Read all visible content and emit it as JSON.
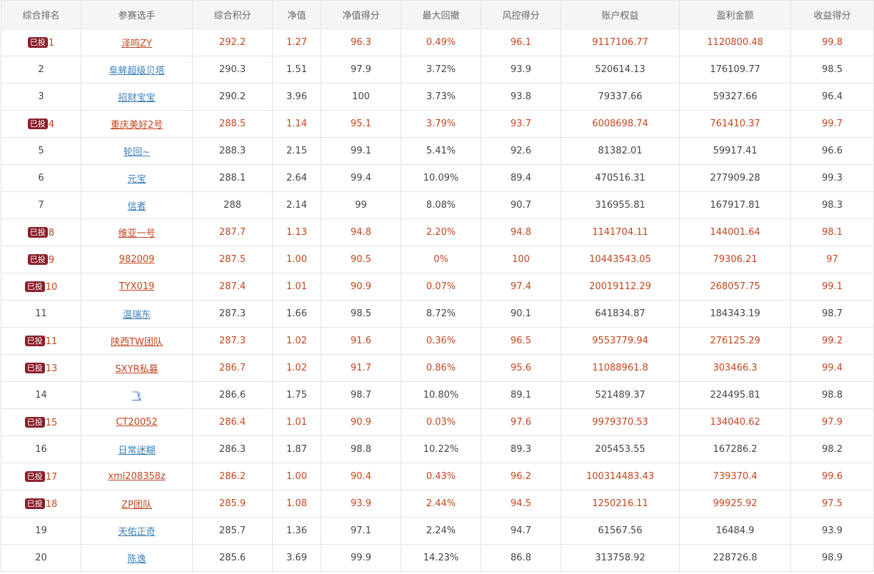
{
  "table": {
    "headers": [
      "综合排名",
      "参赛选手",
      "综合积分",
      "净值",
      "净值得分",
      "最大回撤",
      "风控得分",
      "账户权益",
      "盈利金额",
      "收益得分"
    ],
    "badge_label": "已投",
    "rows": [
      {
        "rank": "1",
        "invested": true,
        "name": "泽鸣ZY",
        "score": "292.2",
        "nav": "1.27",
        "nav_score": "96.3",
        "max_drawdown": "0.49%",
        "risk_score": "96.1",
        "equity": "9117106.77",
        "profit": "1120800.48",
        "return_score": "99.8"
      },
      {
        "rank": "2",
        "invested": false,
        "name": "阜蛑超级贝塔",
        "score": "290.3",
        "nav": "1.51",
        "nav_score": "97.9",
        "max_drawdown": "3.72%",
        "risk_score": "93.9",
        "equity": "520614.13",
        "profit": "176109.77",
        "return_score": "98.5"
      },
      {
        "rank": "3",
        "invested": false,
        "name": "招财宝宝",
        "score": "290.2",
        "nav": "3.96",
        "nav_score": "100",
        "max_drawdown": "3.73%",
        "risk_score": "93.8",
        "equity": "79337.66",
        "profit": "59327.66",
        "return_score": "96.4"
      },
      {
        "rank": "4",
        "invested": true,
        "name": "重庆美好2号",
        "score": "288.5",
        "nav": "1.14",
        "nav_score": "95.1",
        "max_drawdown": "3.79%",
        "risk_score": "93.7",
        "equity": "6008698.74",
        "profit": "761410.37",
        "return_score": "99.7"
      },
      {
        "rank": "5",
        "invested": false,
        "name": "轮回~",
        "score": "288.3",
        "nav": "2.15",
        "nav_score": "99.1",
        "max_drawdown": "5.41%",
        "risk_score": "92.6",
        "equity": "81382.01",
        "profit": "59917.41",
        "return_score": "96.6"
      },
      {
        "rank": "6",
        "invested": false,
        "name": "元宝",
        "score": "288.1",
        "nav": "2.64",
        "nav_score": "99.4",
        "max_drawdown": "10.09%",
        "risk_score": "89.4",
        "equity": "470516.31",
        "profit": "277909.28",
        "return_score": "99.3"
      },
      {
        "rank": "7",
        "invested": false,
        "name": "信者",
        "score": "288",
        "nav": "2.14",
        "nav_score": "99",
        "max_drawdown": "8.08%",
        "risk_score": "90.7",
        "equity": "316955.81",
        "profit": "167917.81",
        "return_score": "98.3"
      },
      {
        "rank": "8",
        "invested": true,
        "name": "维亚一号",
        "score": "287.7",
        "nav": "1.13",
        "nav_score": "94.8",
        "max_drawdown": "2.20%",
        "risk_score": "94.8",
        "equity": "1141704.11",
        "profit": "144001.64",
        "return_score": "98.1"
      },
      {
        "rank": "9",
        "invested": true,
        "name": "982009",
        "score": "287.5",
        "nav": "1.00",
        "nav_score": "90.5",
        "max_drawdown": "0%",
        "risk_score": "100",
        "equity": "10443543.05",
        "profit": "79306.21",
        "return_score": "97"
      },
      {
        "rank": "10",
        "invested": true,
        "name": "TYX019",
        "score": "287.4",
        "nav": "1.01",
        "nav_score": "90.9",
        "max_drawdown": "0.07%",
        "risk_score": "97.4",
        "equity": "20019112.29",
        "profit": "268057.75",
        "return_score": "99.1"
      },
      {
        "rank": "11",
        "invested": false,
        "name": "温瑞东",
        "score": "287.3",
        "nav": "1.66",
        "nav_score": "98.5",
        "max_drawdown": "8.72%",
        "risk_score": "90.1",
        "equity": "641834.87",
        "profit": "184343.19",
        "return_score": "98.7"
      },
      {
        "rank": "11",
        "invested": true,
        "name": "陕西TW团队",
        "score": "287.3",
        "nav": "1.02",
        "nav_score": "91.6",
        "max_drawdown": "0.36%",
        "risk_score": "96.5",
        "equity": "9553779.94",
        "profit": "276125.29",
        "return_score": "99.2"
      },
      {
        "rank": "13",
        "invested": true,
        "name": "SXYR私募",
        "score": "286.7",
        "nav": "1.02",
        "nav_score": "91.7",
        "max_drawdown": "0.86%",
        "risk_score": "95.6",
        "equity": "11088961.8",
        "profit": "303466.3",
        "return_score": "99.4"
      },
      {
        "rank": "14",
        "invested": false,
        "name": "飞",
        "score": "286.6",
        "nav": "1.75",
        "nav_score": "98.7",
        "max_drawdown": "10.80%",
        "risk_score": "89.1",
        "equity": "521489.37",
        "profit": "224495.81",
        "return_score": "98.8"
      },
      {
        "rank": "15",
        "invested": true,
        "name": "CT20052",
        "score": "286.4",
        "nav": "1.01",
        "nav_score": "90.9",
        "max_drawdown": "0.03%",
        "risk_score": "97.6",
        "equity": "9979370.53",
        "profit": "134040.62",
        "return_score": "97.9"
      },
      {
        "rank": "16",
        "invested": false,
        "name": "日常迷糊",
        "score": "286.3",
        "nav": "1.87",
        "nav_score": "98.8",
        "max_drawdown": "10.22%",
        "risk_score": "89.3",
        "equity": "205453.55",
        "profit": "167286.2",
        "return_score": "98.2"
      },
      {
        "rank": "17",
        "invested": true,
        "name": "xml208358z",
        "score": "286.2",
        "nav": "1.00",
        "nav_score": "90.4",
        "max_drawdown": "0.43%",
        "risk_score": "96.2",
        "equity": "100314483.43",
        "profit": "739370.4",
        "return_score": "99.6"
      },
      {
        "rank": "18",
        "invested": true,
        "name": "ZP团队",
        "score": "285.9",
        "nav": "1.08",
        "nav_score": "93.9",
        "max_drawdown": "2.44%",
        "risk_score": "94.5",
        "equity": "1250216.11",
        "profit": "99925.92",
        "return_score": "97.5"
      },
      {
        "rank": "19",
        "invested": false,
        "name": "天佑正奇",
        "score": "285.7",
        "nav": "1.36",
        "nav_score": "97.1",
        "max_drawdown": "2.24%",
        "risk_score": "94.7",
        "equity": "61567.56",
        "profit": "16484.9",
        "return_score": "93.9"
      },
      {
        "rank": "20",
        "invested": false,
        "name": "陈逸",
        "score": "285.6",
        "nav": "3.69",
        "nav_score": "99.9",
        "max_drawdown": "14.23%",
        "risk_score": "86.8",
        "equity": "313758.92",
        "profit": "228726.8",
        "return_score": "98.9"
      }
    ]
  },
  "colors": {
    "header_bg": "#f4f5f7",
    "border": "#e3e3e3",
    "invested_text": "#c3461f",
    "link": "#3a7fb9",
    "badge_bg": "#8a1f2a"
  }
}
